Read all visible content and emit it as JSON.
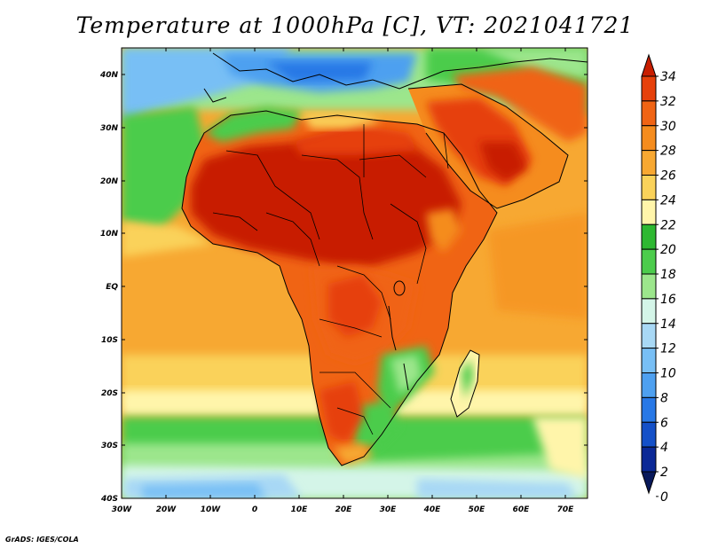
{
  "map": {
    "title": "Temperature at 1000hPa [C], VT: 2021041721",
    "credit": "GrADS: IGES/COLA",
    "lon_labels": [
      "30W",
      "20W",
      "10W",
      "0",
      "10E",
      "20E",
      "30E",
      "40E",
      "50E",
      "60E",
      "70E"
    ],
    "lat_labels": [
      "40N",
      "30N",
      "20N",
      "10N",
      "EQ",
      "10S",
      "20S",
      "30S",
      "40S"
    ],
    "extent": {
      "lon": [
        -30,
        75
      ],
      "lat": [
        -40,
        45
      ]
    }
  },
  "colorbar": {
    "labels": [
      "34",
      "32",
      "30",
      "28",
      "26",
      "24",
      "22",
      "20",
      "18",
      "16",
      "14",
      "12",
      "10",
      "8",
      "6",
      "4",
      "2",
      "0"
    ],
    "colors": [
      "#c81e00",
      "#e6400a",
      "#f06414",
      "#f58c1e",
      "#f7a832",
      "#fad25a",
      "#fff5aa",
      "#2eb832",
      "#4ccc4c",
      "#9ce68c",
      "#d4f5e8",
      "#a8d8f5",
      "#78bff5",
      "#4ea0f0",
      "#2878e6",
      "#1450c8",
      "#0a2896",
      "#08185a"
    ]
  }
}
